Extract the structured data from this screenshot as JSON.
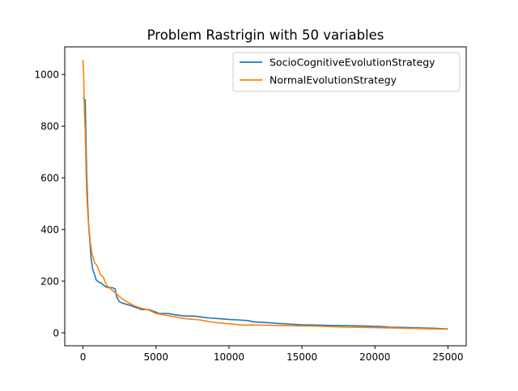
{
  "chart_data": {
    "type": "line",
    "title": "Problem Rastrigin with 50 variables",
    "xlabel": "",
    "ylabel": "",
    "xlim": [
      -1250,
      26250
    ],
    "ylim": [
      -50,
      1107
    ],
    "xticks": [
      0,
      5000,
      10000,
      15000,
      20000,
      25000
    ],
    "yticks": [
      0,
      200,
      400,
      600,
      800,
      1000
    ],
    "legend_position": "upper-right",
    "grid": false,
    "series": [
      {
        "name": "SocioCognitiveEvolutionStrategy",
        "color": "#1f77b4",
        "x": [
          0,
          100,
          150,
          200,
          250,
          300,
          350,
          400,
          450,
          500,
          550,
          600,
          650,
          700,
          800,
          900,
          1000,
          1100,
          1200,
          1500,
          1700,
          2000,
          2200,
          2300,
          2500,
          2700,
          3000,
          3300,
          3500,
          3800,
          4000,
          4500,
          5000,
          5200,
          5800,
          6300,
          7000,
          7600,
          8000,
          8600,
          9300,
          10000,
          10600,
          11200,
          11800,
          12500,
          13500,
          14500,
          15000,
          16000,
          17500,
          19000,
          19500,
          20500,
          21000,
          22000,
          23000,
          24000,
          25000
        ],
        "y": [
          910,
          905,
          900,
          750,
          620,
          530,
          460,
          400,
          370,
          330,
          290,
          270,
          250,
          240,
          225,
          205,
          200,
          195,
          195,
          180,
          175,
          175,
          170,
          140,
          120,
          115,
          110,
          105,
          100,
          95,
          90,
          90,
          80,
          75,
          75,
          70,
          65,
          65,
          62,
          58,
          55,
          52,
          50,
          48,
          42,
          40,
          36,
          33,
          31,
          30,
          28,
          27,
          26,
          24,
          22,
          21,
          19,
          18,
          15
        ]
      },
      {
        "name": "NormalEvolutionStrategy",
        "color": "#ff7f0e",
        "x": [
          0,
          50,
          100,
          150,
          200,
          250,
          300,
          350,
          400,
          450,
          500,
          600,
          700,
          800,
          900,
          1000,
          1200,
          1400,
          1600,
          1800,
          2000,
          2300,
          2600,
          3000,
          3500,
          4000,
          4500,
          5000,
          6000,
          7000,
          8000,
          9000,
          10000,
          11000,
          12000,
          13000,
          14000,
          15000,
          16000,
          17000,
          18000,
          20000,
          22000,
          23500,
          25000
        ],
        "y": [
          1055,
          1000,
          850,
          780,
          650,
          540,
          490,
          440,
          410,
          380,
          350,
          310,
          290,
          270,
          265,
          255,
          225,
          215,
          185,
          175,
          165,
          150,
          135,
          120,
          105,
          95,
          88,
          75,
          65,
          55,
          50,
          40,
          35,
          30,
          30,
          29,
          28,
          27,
          26,
          24,
          22,
          20,
          18,
          16,
          14
        ]
      }
    ]
  }
}
